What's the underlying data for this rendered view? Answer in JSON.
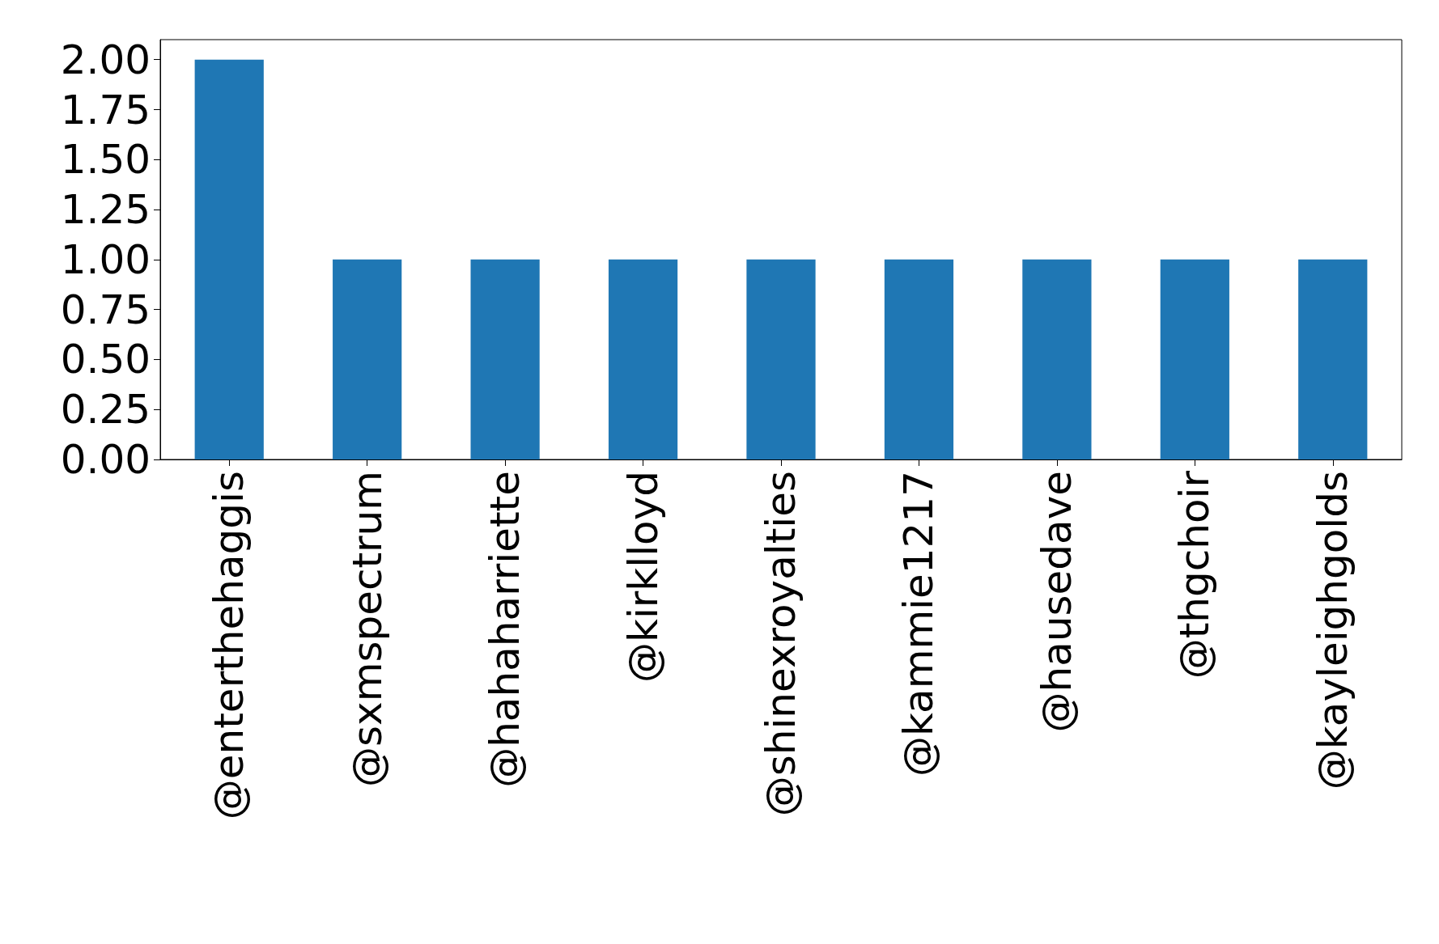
{
  "chart_data": {
    "type": "bar",
    "categories": [
      "@enterthehaggis",
      "@sxmspectrum",
      "@hahaharriette",
      "@kirklloyd",
      "@shinexroyalties",
      "@kammie1217",
      "@hausedave",
      "@thgchoir",
      "@kayleighgolds"
    ],
    "values": [
      2,
      1,
      1,
      1,
      1,
      1,
      1,
      1,
      1
    ],
    "color": "#1f77b4",
    "ylim": [
      0,
      2.1
    ],
    "yticks": [
      {
        "value": 0,
        "label": "0.00"
      },
      {
        "value": 0.25,
        "label": "0.25"
      },
      {
        "value": 0.5,
        "label": "0.50"
      },
      {
        "value": 0.75,
        "label": "0.75"
      },
      {
        "value": 1,
        "label": "1.00"
      },
      {
        "value": 1.25,
        "label": "1.25"
      },
      {
        "value": 1.5,
        "label": "1.50"
      },
      {
        "value": 1.75,
        "label": "1.75"
      },
      {
        "value": 2,
        "label": "2.00"
      }
    ],
    "grid": false
  }
}
